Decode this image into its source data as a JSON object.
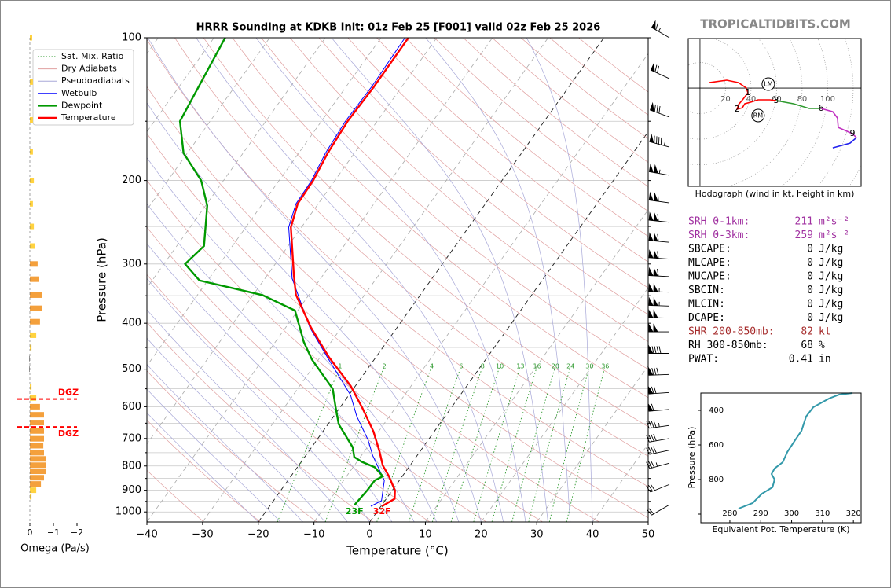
{
  "watermark": "TROPICALTIDBITS.COM",
  "chart_data": [
    {
      "type": "skewt",
      "title": "HRRR Sounding at KDKB Init: 01z Feb 25 [F001] valid 02z Feb 25 2026",
      "xlabel": "Temperature (°C)",
      "ylabel": "Pressure (hPa)",
      "xlim": [
        -40,
        50
      ],
      "ylim": [
        1050,
        100
      ],
      "log_y": true,
      "grid": true,
      "xticks": [
        {
          "value": -40,
          "label": "−40"
        },
        {
          "value": -30,
          "label": "−30"
        },
        {
          "value": -20,
          "label": "−20"
        },
        {
          "value": -10,
          "label": "−10"
        },
        0,
        10,
        20,
        30,
        40,
        50
      ],
      "yticks": [
        100,
        200,
        300,
        400,
        500,
        600,
        700,
        800,
        900,
        1000
      ],
      "yticks_minor": [
        150,
        250,
        350,
        450,
        550,
        650,
        750,
        850,
        950
      ],
      "highlight_isotherms": [
        0,
        -20
      ],
      "reference_lines": [
        {
          "name": "Sat. Mix. Ratio",
          "color": "#2e9a2e",
          "style": "dotted",
          "values": [
            1,
            2,
            4,
            6,
            8,
            10,
            13,
            16,
            20,
            24,
            30,
            36
          ]
        },
        {
          "name": "Dry Adiabats",
          "color": "#e0a0a0",
          "style": "solid"
        },
        {
          "name": "Pseudoadiabats",
          "color": "#a8a8d8",
          "style": "solid"
        }
      ],
      "legend": "upper left",
      "series": [
        {
          "name": "Wetbulb",
          "color": "#0000ff",
          "pressure": [
            973,
            947,
            858,
            760,
            705,
            628,
            567,
            472,
            408,
            322,
            251,
            224,
            200,
            175,
            150,
            127,
            100
          ],
          "values": [
            -1.8,
            -0.6,
            -2.7,
            -8,
            -10.8,
            -15.9,
            -19.7,
            -28.7,
            -35.7,
            -45.1,
            -52.3,
            -54,
            -54.2,
            -55.2,
            -55.7,
            -55.4,
            -55.7
          ]
        },
        {
          "name": "Dewpoint",
          "color": "#009900",
          "surface_label": "23F",
          "pressure": [
            967,
            901,
            858,
            841,
            805,
            784,
            766,
            731,
            653,
            600,
            550,
            477,
            438,
            376,
            349,
            325,
            300,
            275,
            226,
            200,
            175,
            150,
            100
          ],
          "values": [
            -4.9,
            -4.5,
            -4.4,
            -3.5,
            -6.1,
            -9.1,
            -11.1,
            -12.6,
            -18.1,
            -20.9,
            -23.7,
            -31.2,
            -34.9,
            -40.5,
            -48.3,
            -61.5,
            -66.2,
            -65.1,
            -69.7,
            -74,
            -80.7,
            -85.4,
            -88
          ]
        },
        {
          "name": "Temperature",
          "color": "#ff0000",
          "surface_label": "32F",
          "pressure": [
            973,
            938,
            901,
            841,
            798,
            745,
            677,
            604,
            543,
            472,
            408,
            348,
            316,
            251,
            224,
            200,
            175,
            150,
            127,
            100
          ],
          "values": [
            0.2,
            1.5,
            0.5,
            -2.4,
            -4.9,
            -7.3,
            -10.9,
            -15.9,
            -20.8,
            -28.4,
            -35.5,
            -42.4,
            -45.3,
            -51.9,
            -53.7,
            -53.9,
            -54.8,
            -55.3,
            -55,
            -55.1
          ]
        }
      ],
      "winds": {
        "pressure": [
          100,
          122,
          147,
          170,
          195,
          223,
          245,
          270,
          293,
          319,
          344,
          368,
          390,
          417,
          463,
          513,
          560,
          608,
          657,
          700,
          741,
          789,
          875,
          966
        ],
        "speed": [
          65,
          70,
          80,
          95,
          105,
          110,
          110,
          110,
          110,
          110,
          105,
          105,
          100,
          100,
          90,
          80,
          70,
          60,
          45,
          40,
          40,
          35,
          30,
          20
        ],
        "direction": [
          300,
          295,
          290,
          285,
          280,
          278,
          276,
          275,
          274,
          273,
          272,
          272,
          271,
          270,
          270,
          268,
          266,
          265,
          262,
          260,
          258,
          255,
          248,
          240
        ]
      }
    },
    {
      "type": "omega-bar",
      "xlabel": "Omega (Pa/s)",
      "xlim": [
        0.4,
        -2.2
      ],
      "xticks": [
        0,
        {
          "value": -1,
          "label": "−1"
        },
        {
          "value": -2,
          "label": "−2"
        }
      ],
      "color_light": "#ffd23f",
      "color_strong": "#f4a03c",
      "color_sink": "#888888",
      "pressure": [
        100,
        124,
        149,
        174,
        200,
        224,
        250,
        275,
        300,
        323,
        349,
        372,
        397,
        424,
        450,
        475,
        500,
        545,
        575,
        600,
        624,
        648,
        675,
        701,
        725,
        750,
        773,
        797,
        821,
        847,
        873,
        900,
        929
      ],
      "values": [
        -0.1,
        -0.13,
        -0.13,
        -0.13,
        -0.17,
        -0.13,
        -0.17,
        -0.2,
        -0.33,
        -0.4,
        -0.53,
        -0.53,
        -0.43,
        -0.27,
        -0.07,
        0.03,
        0.03,
        -0.07,
        -0.27,
        -0.43,
        -0.6,
        -0.6,
        -0.6,
        -0.6,
        -0.57,
        -0.6,
        -0.67,
        -0.7,
        -0.7,
        -0.6,
        -0.47,
        -0.27,
        -0.07
      ],
      "dgz": {
        "label": "DGZ",
        "color": "#ff0000",
        "top": 578,
        "bottom": 662
      }
    },
    {
      "type": "hodograph",
      "caption": "Hodograph (wind in kt, height in km)",
      "ulim": [
        -9.2,
        126.2
      ],
      "vlim": [
        -76.9,
        38.8
      ],
      "rings": [
        20,
        40,
        60,
        80,
        100,
        120,
        140,
        160
      ],
      "ring_labels": [
        20,
        40,
        60,
        80,
        100
      ],
      "segments": [
        {
          "color": "#ff0000",
          "u": [
            7.4,
            20.9,
            30.2,
            36.3,
            37.5,
            33.8,
            30.2,
            29,
            33.2,
            35.1,
            39.4,
            45.5,
            54.8,
            59.7
          ],
          "v": [
            4.3,
            6.2,
            4.3,
            0,
            -3.7,
            -8.6,
            -12.9,
            -16.6,
            -15.4,
            -12.3,
            -11.1,
            -9.2,
            -9.2,
            -9.8
          ],
          "point_labels": [
            null,
            null,
            null,
            null,
            1,
            null,
            null,
            2,
            null,
            null,
            null,
            null,
            null,
            3
          ]
        },
        {
          "color": "#2e9a2e",
          "u": [
            59.7,
            73.2,
            85.5,
            94.8
          ],
          "v": [
            -9.8,
            -12.3,
            -16,
            -16
          ],
          "point_labels": [
            null,
            null,
            null,
            6
          ]
        },
        {
          "color": "#c030c0",
          "u": [
            94.8,
            104,
            107.7,
            108.3,
            119.4,
            122.5
          ],
          "v": [
            -16,
            -18.5,
            -23.4,
            -30.8,
            -35.7,
            -38.8
          ],
          "point_labels": [
            null,
            null,
            null,
            null,
            9,
            null
          ]
        },
        {
          "color": "#2222ee",
          "u": [
            122.5,
            117.5,
            104
          ],
          "v": [
            -38.8,
            -43.1,
            -46.8
          ],
          "point_labels": [
            null,
            null,
            null
          ]
        }
      ],
      "storm_motions": [
        {
          "label": "LM",
          "u": 53.5,
          "v": 3.1
        },
        {
          "label": "RM",
          "u": 45.5,
          "v": -21.5
        }
      ]
    },
    {
      "type": "line",
      "xlabel": "Equivalent Pot. Temperature (K)",
      "ylabel": "Pressure (hPa)",
      "color": "#3399aa",
      "xlim": [
        270.6,
        322.5
      ],
      "ylim": [
        1050,
        300
      ],
      "xticks": [
        280,
        290,
        300,
        310,
        320
      ],
      "yticks": [
        400,
        600,
        800,
        {
          "value": 1000,
          "label": null
        }
      ],
      "x": [
        282.8,
        287.4,
        290.4,
        293.8,
        294.5,
        293.5,
        294.5,
        297.1,
        298.6,
        301.1,
        303.2,
        304.7,
        307,
        312.1,
        315.4,
        319.7
      ],
      "values": [
        968,
        936,
        882,
        845,
        800,
        768,
        736,
        700,
        641,
        573,
        518,
        436,
        382,
        332,
        309,
        300
      ]
    }
  ],
  "stats": [
    {
      "label": "SRH 0-1km:",
      "value": 211,
      "unit": "m²s⁻²",
      "color": "#a030a0"
    },
    {
      "label": "SRH 0-3km:",
      "value": 259,
      "unit": "m²s⁻²",
      "color": "#a030a0"
    },
    {
      "label": "SBCAPE:",
      "value": 0,
      "unit": "J/kg",
      "color": "#000000"
    },
    {
      "label": "MLCAPE:",
      "value": 0,
      "unit": "J/kg",
      "color": "#000000"
    },
    {
      "label": "MUCAPE:",
      "value": 0,
      "unit": "J/kg",
      "color": "#000000"
    },
    {
      "label": "SBCIN:",
      "value": 0,
      "unit": "J/kg",
      "color": "#000000"
    },
    {
      "label": "MLCIN:",
      "value": 0,
      "unit": "J/kg",
      "color": "#000000"
    },
    {
      "label": "DCAPE:",
      "value": 0,
      "unit": "J/kg",
      "color": "#000000"
    },
    {
      "label": "SHR 200-850mb:",
      "value": 82,
      "unit": "kt",
      "color": "#a52a2a"
    },
    {
      "label": "RH 300-850mb:",
      "value": 68,
      "unit": "%",
      "color": "#000000"
    },
    {
      "label": "PWAT:",
      "value": 0.41,
      "unit": "in",
      "color": "#000000"
    }
  ]
}
